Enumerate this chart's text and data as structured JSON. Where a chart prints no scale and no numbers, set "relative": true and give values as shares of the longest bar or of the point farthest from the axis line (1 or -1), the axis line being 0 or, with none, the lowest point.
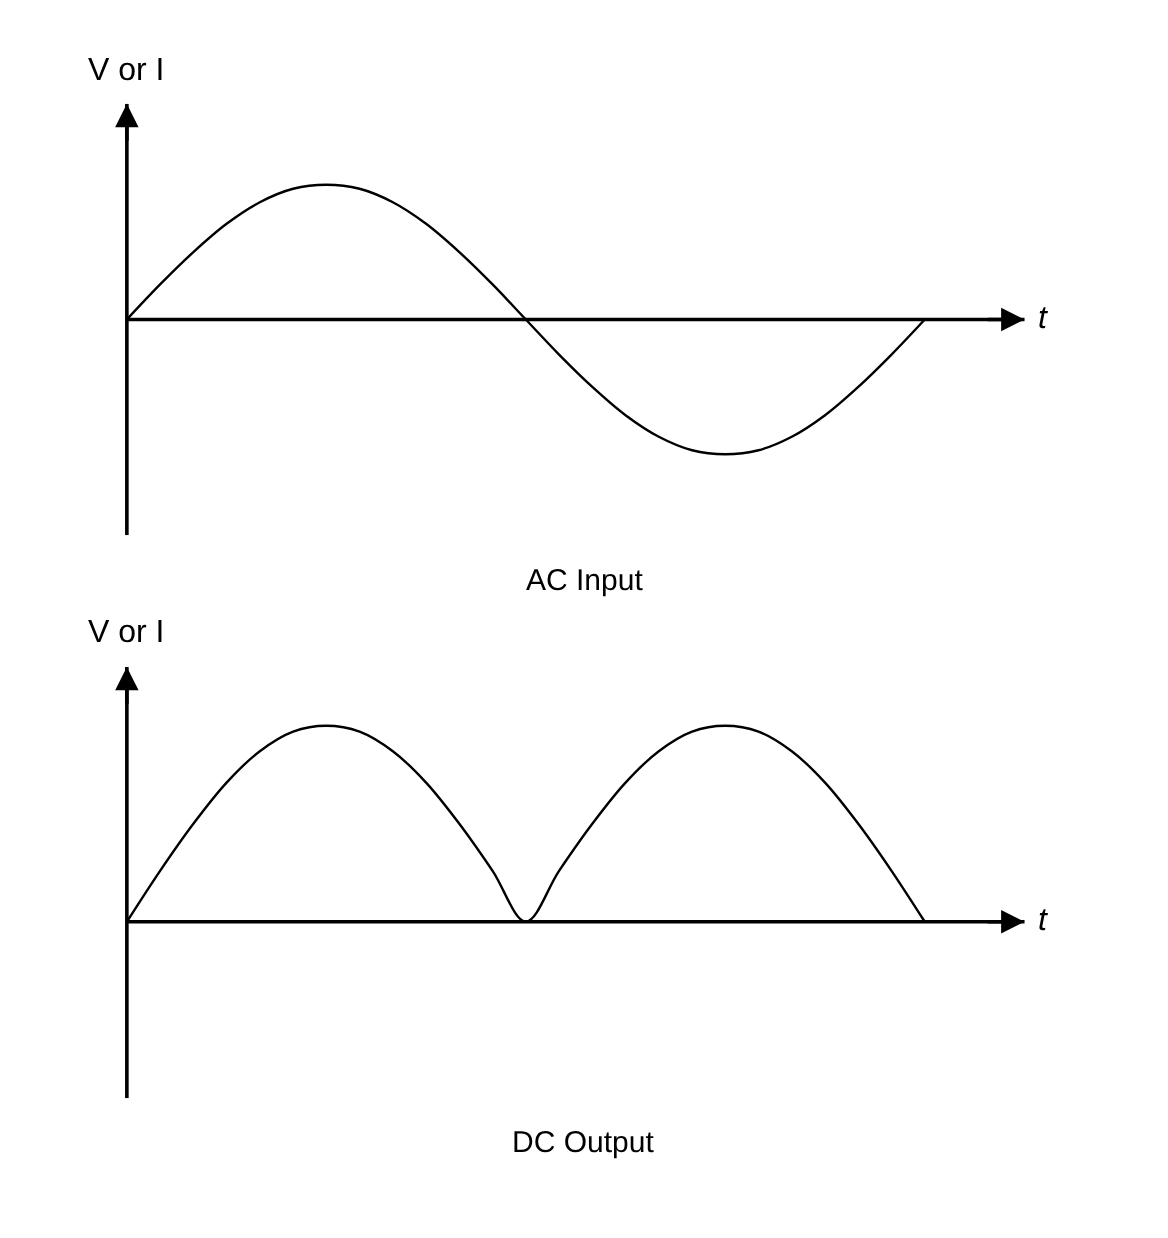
{
  "chart_data": [
    {
      "type": "line",
      "relative": true,
      "xlabel": "t",
      "ylabel": "V or I",
      "annotations": [
        "AC Input"
      ],
      "categories": [
        null,
        null,
        null,
        null,
        null,
        null,
        null,
        null,
        null,
        null,
        null,
        null,
        null,
        null,
        null,
        null,
        null,
        null,
        null,
        null,
        null,
        null,
        null,
        null,
        null
      ],
      "series": [
        {
          "color": "#000000",
          "values": [
            0,
            0.26,
            0.5,
            0.71,
            0.87,
            0.97,
            1,
            0.97,
            0.87,
            0.71,
            0.5,
            0.26,
            0,
            -0.26,
            -0.5,
            -0.71,
            -0.87,
            -0.97,
            -1,
            -0.97,
            -0.87,
            -0.71,
            -0.5,
            -0.26,
            0
          ]
        }
      ],
      "marker": "none",
      "line_style": "solid"
    },
    {
      "type": "line",
      "relative": true,
      "xlabel": "t",
      "ylabel": "V or I",
      "annotations": [
        "DC Output"
      ],
      "categories": [
        null,
        null,
        null,
        null,
        null,
        null,
        null,
        null,
        null,
        null,
        null,
        null,
        null,
        null,
        null,
        null,
        null,
        null,
        null,
        null,
        null,
        null,
        null,
        null,
        null
      ],
      "series": [
        {
          "color": "#000000",
          "values": [
            0,
            0.26,
            0.5,
            0.71,
            0.87,
            0.97,
            1,
            0.97,
            0.87,
            0.71,
            0.5,
            0.26,
            0,
            0.26,
            0.5,
            0.71,
            0.87,
            0.97,
            1,
            0.97,
            0.87,
            0.71,
            0.5,
            0.26,
            0
          ]
        }
      ],
      "marker": "none",
      "line_style": "solid"
    }
  ]
}
